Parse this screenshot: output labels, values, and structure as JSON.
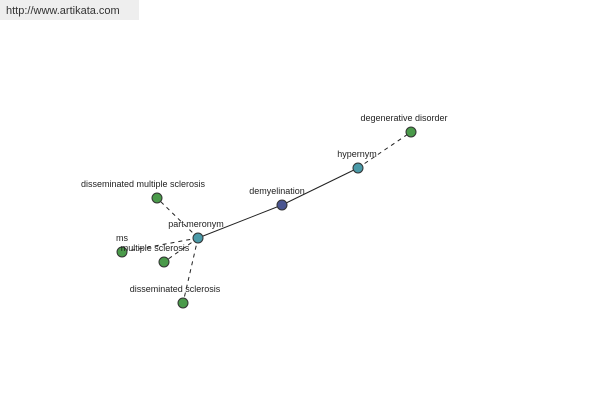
{
  "url": "http://www.artikata.com",
  "nodes": [
    {
      "label": "demyelination"
    },
    {
      "label": "hypernym"
    },
    {
      "label": "degenerative disorder"
    },
    {
      "label": "part meronym"
    },
    {
      "label": "disseminated multiple sclerosis"
    },
    {
      "label": "ms"
    },
    {
      "label": "multiple sclerosis"
    },
    {
      "label": "disseminated sclerosis"
    }
  ]
}
